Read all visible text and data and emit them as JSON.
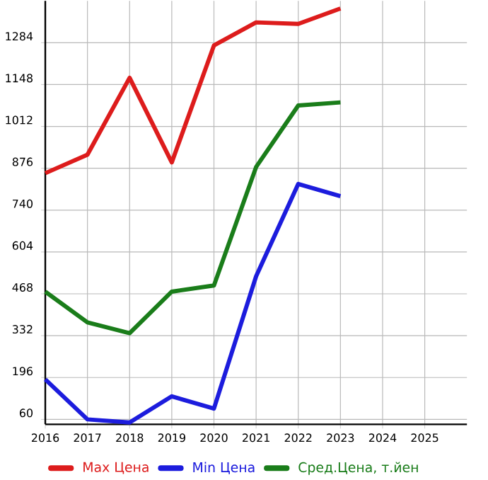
{
  "chart_data": {
    "type": "line",
    "x": [
      2016,
      2017,
      2018,
      2019,
      2020,
      2021,
      2022,
      2023
    ],
    "series": [
      {
        "name": "Max Цена",
        "color": "#dd1c1c",
        "values": [
          860,
          920,
          1170,
          895,
          1275,
          1350,
          1345,
          1395
        ]
      },
      {
        "name": "Min Цена",
        "color": "#1c1cdd",
        "values": [
          190,
          60,
          50,
          135,
          95,
          525,
          825,
          785
        ]
      },
      {
        "name": "Сред.Цена, т.йен",
        "color": "#1a7d1a",
        "values": [
          475,
          375,
          340,
          475,
          495,
          880,
          1080,
          1090
        ]
      }
    ],
    "xlim": [
      2016,
      2026
    ],
    "xticks": [
      2016,
      2017,
      2018,
      2019,
      2020,
      2021,
      2022,
      2023,
      2024,
      2025
    ],
    "ylim": [
      44,
      1420
    ],
    "yticks": [
      60,
      196,
      332,
      468,
      604,
      740,
      876,
      1012,
      1148,
      1284
    ],
    "grid": true,
    "legend": "bottom",
    "marker": "none",
    "line_style": "solid"
  }
}
